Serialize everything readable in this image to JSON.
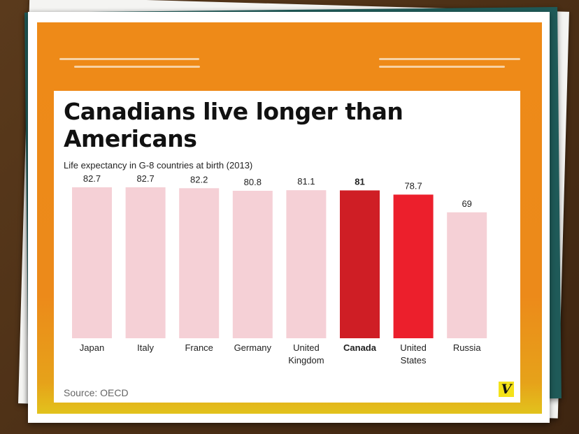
{
  "chart_data": {
    "type": "bar",
    "title": "Canadians live longer than Americans",
    "subtitle": "Life expectancy in G-8 countries at birth (2013)",
    "categories": [
      "Japan",
      "Italy",
      "France",
      "Germany",
      "United Kingdom",
      "Canada",
      "United States",
      "Russia"
    ],
    "values": [
      82.7,
      82.7,
      82.2,
      80.8,
      81.1,
      81,
      78.7,
      69
    ],
    "value_labels": [
      "82.7",
      "82.7",
      "82.2",
      "80.8",
      "81.1",
      "81",
      "78.7",
      "69"
    ],
    "category_label_lines": [
      [
        "Japan"
      ],
      [
        "Italy"
      ],
      [
        "France"
      ],
      [
        "Germany"
      ],
      [
        "United",
        "Kingdom"
      ],
      [
        "Canada"
      ],
      [
        "United",
        "States"
      ],
      [
        "Russia"
      ]
    ],
    "highlight": [
      "Canada",
      "United States"
    ],
    "colors": {
      "default": "#f5d0d6",
      "Canada": "#cf1e25",
      "United States": "#ec1f2c"
    },
    "ylim": [
      0,
      82.7
    ],
    "grid": false,
    "legend": "none"
  },
  "source": "Source: OECD",
  "logo": "V"
}
